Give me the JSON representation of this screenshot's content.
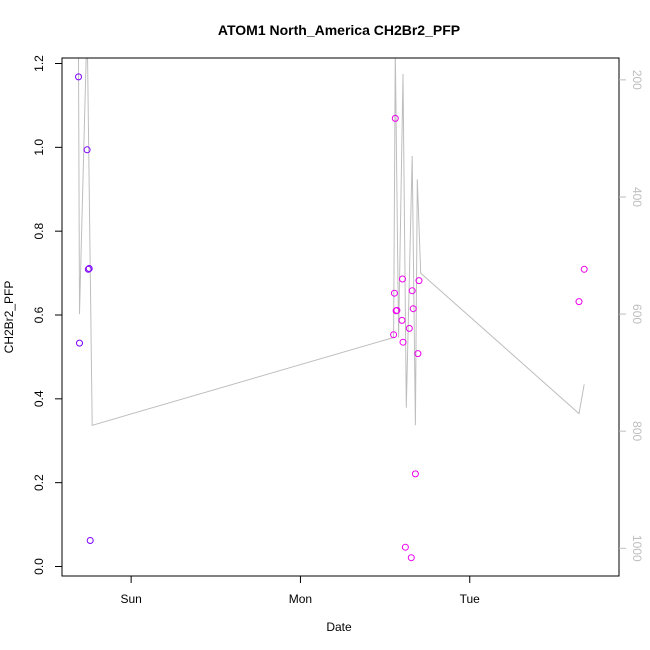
{
  "chart_data": {
    "type": "scatter",
    "title": "ATOM1 North_America CH2Br2_PFP",
    "xlabel": "Date",
    "ylabel": "CH2Br2_PFP",
    "x_ticks": [
      {
        "label": "Sun",
        "value": 1.0
      },
      {
        "label": "Mon",
        "value": 2.0
      },
      {
        "label": "Tue",
        "value": 3.0
      }
    ],
    "xlim": [
      0.63,
      3.79
    ],
    "ylim": [
      0.0,
      1.2
    ],
    "y_ticks": [
      "0.0",
      "0.2",
      "0.4",
      "0.6",
      "0.8",
      "1.0",
      "1.2"
    ],
    "y2_ticks": [
      "200",
      "400",
      "600",
      "800",
      "1000"
    ],
    "y2lim": [
      190,
      1020
    ],
    "grid": false,
    "series": [
      {
        "color": "#7f00ff",
        "points": [
          {
            "x": 0.689,
            "y": 1.168
          },
          {
            "x": 0.695,
            "y": 0.533
          },
          {
            "x": 0.74,
            "y": 0.994
          },
          {
            "x": 0.747,
            "y": 0.709
          },
          {
            "x": 0.752,
            "y": 0.711
          },
          {
            "x": 0.758,
            "y": 0.062
          }
        ]
      },
      {
        "color": "#ee00ee",
        "points": [
          {
            "x": 2.55,
            "y": 0.553
          },
          {
            "x": 2.555,
            "y": 0.652
          },
          {
            "x": 2.56,
            "y": 1.069
          },
          {
            "x": 2.565,
            "y": 0.61
          },
          {
            "x": 2.57,
            "y": 0.611
          },
          {
            "x": 2.6,
            "y": 0.587
          },
          {
            "x": 2.603,
            "y": 0.686
          },
          {
            "x": 2.606,
            "y": 0.535
          },
          {
            "x": 2.62,
            "y": 0.046
          },
          {
            "x": 2.643,
            "y": 0.568
          },
          {
            "x": 2.655,
            "y": 0.021
          },
          {
            "x": 2.66,
            "y": 0.658
          },
          {
            "x": 2.666,
            "y": 0.615
          },
          {
            "x": 2.679,
            "y": 0.221
          },
          {
            "x": 2.694,
            "y": 0.508
          },
          {
            "x": 2.7,
            "y": 0.682
          },
          {
            "x": 3.645,
            "y": 0.632
          },
          {
            "x": 3.676,
            "y": 0.709
          }
        ]
      }
    ],
    "line_series": {
      "color": "#bebebe",
      "axis": "right",
      "points": [
        {
          "x": 0.689,
          "y": 160
        },
        {
          "x": 0.695,
          "y": 600
        },
        {
          "x": 0.74,
          "y": 100
        },
        {
          "x": 0.77,
          "y": 790
        },
        {
          "x": 2.55,
          "y": 640
        },
        {
          "x": 2.56,
          "y": 150
        },
        {
          "x": 2.58,
          "y": 640
        },
        {
          "x": 2.606,
          "y": 190
        },
        {
          "x": 2.625,
          "y": 760
        },
        {
          "x": 2.66,
          "y": 330
        },
        {
          "x": 2.679,
          "y": 790
        },
        {
          "x": 2.69,
          "y": 370
        },
        {
          "x": 2.71,
          "y": 530
        },
        {
          "x": 3.645,
          "y": 770
        },
        {
          "x": 3.676,
          "y": 720
        }
      ]
    }
  }
}
